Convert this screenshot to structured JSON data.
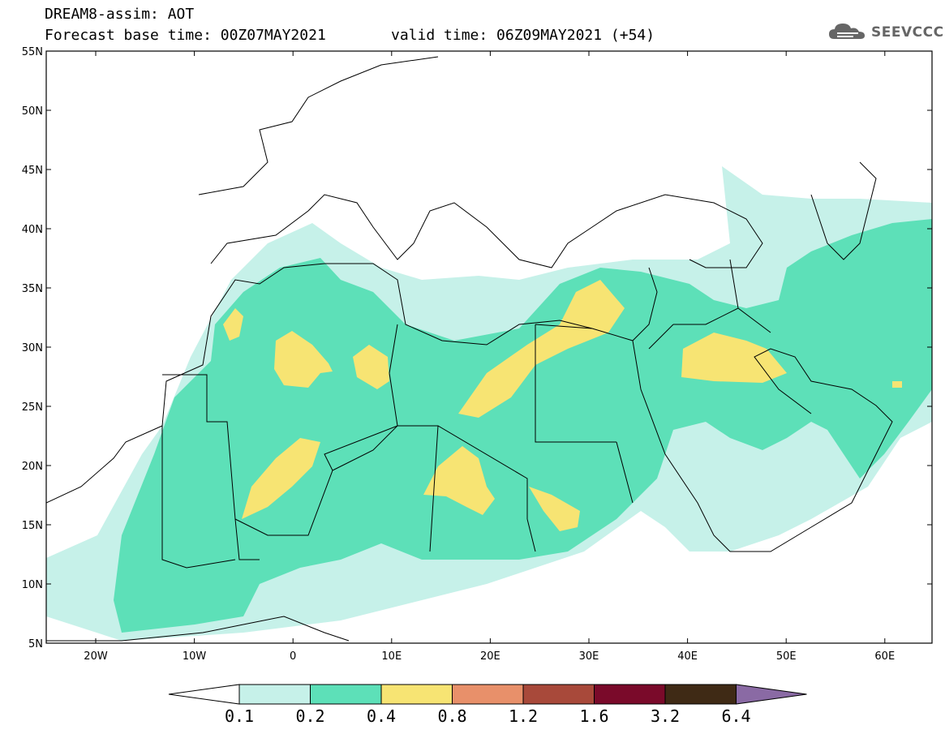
{
  "header": {
    "title": "DREAM8-assim: AOT",
    "forecast_base": "Forecast base time: 00Z07MAY2021",
    "valid_time": "valid time: 06Z09MAY2021 (+54)"
  },
  "logo": {
    "text": "SEEVCCC",
    "icon": "cloud-logo-icon"
  },
  "map": {
    "region": "North Africa, Mediterranean and Middle East",
    "lat_labels": [
      "55N",
      "50N",
      "45N",
      "40N",
      "35N",
      "30N",
      "25N",
      "20N",
      "15N",
      "10N",
      "5N"
    ],
    "lon_labels": [
      "20W",
      "10W",
      "0",
      "10E",
      "20E",
      "30E",
      "40E",
      "50E",
      "60E"
    ]
  },
  "colorbar": {
    "labels": [
      "0.1",
      "0.2",
      "0.4",
      "0.8",
      "1.2",
      "1.6",
      "3.2",
      "6.4"
    ],
    "colors": [
      "#c6f1e9",
      "#5de0b8",
      "#f7e473",
      "#e8906a",
      "#a8493a",
      "#7a0a2a",
      "#3f2a15",
      "#8a6aa4"
    ],
    "under_color": "#ffffff"
  }
}
